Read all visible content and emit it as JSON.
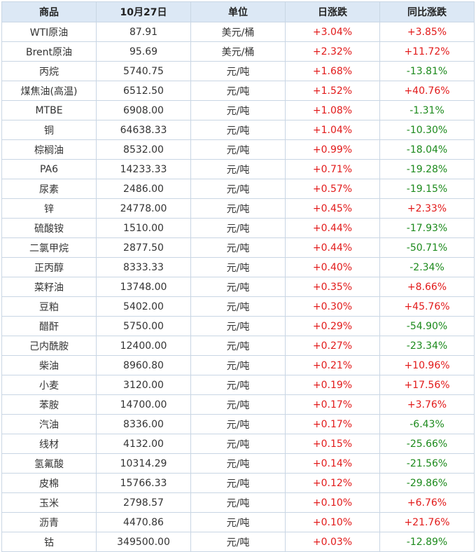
{
  "table": {
    "header": [
      "商品",
      "10月27日",
      "单位",
      "日涨跌",
      "同比涨跌"
    ],
    "rows": [
      [
        "WTI原油",
        "87.91",
        "美元/桶",
        "+3.04%",
        "+3.85%"
      ],
      [
        "Brent原油",
        "95.69",
        "美元/桶",
        "+2.32%",
        "+11.72%"
      ],
      [
        "丙烷",
        "5740.75",
        "元/吨",
        "+1.68%",
        "-13.81%"
      ],
      [
        "煤焦油(高温)",
        "6512.50",
        "元/吨",
        "+1.52%",
        "+40.76%"
      ],
      [
        "MTBE",
        "6908.00",
        "元/吨",
        "+1.08%",
        "-1.31%"
      ],
      [
        "铜",
        "64638.33",
        "元/吨",
        "+1.04%",
        "-10.30%"
      ],
      [
        "棕榈油",
        "8532.00",
        "元/吨",
        "+0.99%",
        "-18.04%"
      ],
      [
        "PA6",
        "14233.33",
        "元/吨",
        "+0.71%",
        "-19.28%"
      ],
      [
        "尿素",
        "2486.00",
        "元/吨",
        "+0.57%",
        "-19.15%"
      ],
      [
        "锌",
        "24778.00",
        "元/吨",
        "+0.45%",
        "+2.33%"
      ],
      [
        "硫酸铵",
        "1510.00",
        "元/吨",
        "+0.44%",
        "-17.93%"
      ],
      [
        "二氯甲烷",
        "2877.50",
        "元/吨",
        "+0.44%",
        "-50.71%"
      ],
      [
        "正丙醇",
        "8333.33",
        "元/吨",
        "+0.40%",
        "-2.34%"
      ],
      [
        "菜籽油",
        "13748.00",
        "元/吨",
        "+0.35%",
        "+8.66%"
      ],
      [
        "豆粕",
        "5402.00",
        "元/吨",
        "+0.30%",
        "+45.76%"
      ],
      [
        "醋酐",
        "5750.00",
        "元/吨",
        "+0.29%",
        "-54.90%"
      ],
      [
        "己内酰胺",
        "12400.00",
        "元/吨",
        "+0.27%",
        "-23.34%"
      ],
      [
        "柴油",
        "8960.80",
        "元/吨",
        "+0.21%",
        "+10.96%"
      ],
      [
        "小麦",
        "3120.00",
        "元/吨",
        "+0.19%",
        "+17.56%"
      ],
      [
        "苯胺",
        "14700.00",
        "元/吨",
        "+0.17%",
        "+3.76%"
      ],
      [
        "汽油",
        "8336.00",
        "元/吨",
        "+0.17%",
        "-6.43%"
      ],
      [
        "线材",
        "4132.00",
        "元/吨",
        "+0.15%",
        "-25.66%"
      ],
      [
        "氢氟酸",
        "10314.29",
        "元/吨",
        "+0.14%",
        "-21.56%"
      ],
      [
        "皮棉",
        "15766.33",
        "元/吨",
        "+0.12%",
        "-29.86%"
      ],
      [
        "玉米",
        "2798.57",
        "元/吨",
        "+0.10%",
        "+6.76%"
      ],
      [
        "沥青",
        "4470.86",
        "元/吨",
        "+0.10%",
        "+21.76%"
      ],
      [
        "钴",
        "349500.00",
        "元/吨",
        "+0.03%",
        "-12.89%"
      ]
    ]
  }
}
